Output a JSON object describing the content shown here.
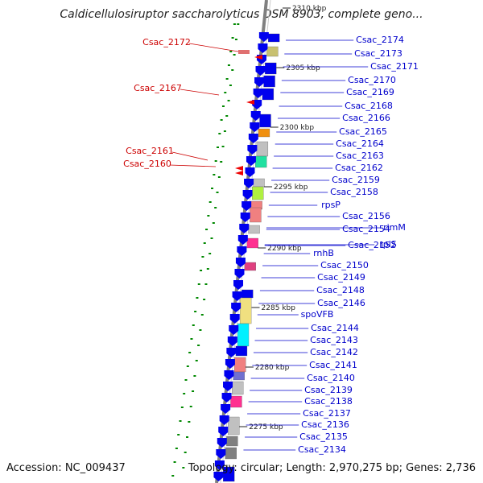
{
  "title": "Caldicellulosiruptor saccharolyticus DSM 8903, complete geno...",
  "footer": {
    "accession": "Accession: NC_009437",
    "summary": "Topology: circular; Length: 2,970,275 bp; Genes: 2,736"
  },
  "scale_ticks": [
    {
      "label": "2310 kbp",
      "pos": 2310
    },
    {
      "label": "2305 kbp",
      "pos": 2305
    },
    {
      "label": "2300 kbp",
      "pos": 2300
    },
    {
      "label": "2295 kbp",
      "pos": 2295
    },
    {
      "label": "2290 kbp",
      "pos": 2290
    },
    {
      "label": "2285 kbp",
      "pos": 2285
    },
    {
      "label": "2280 kbp",
      "pos": 2280
    },
    {
      "label": "2275 kbp",
      "pos": 2275
    }
  ],
  "right_labels": [
    "Csac_2174",
    "Csac_2173",
    "Csac_2171",
    "Csac_2170",
    "Csac_2169",
    "Csac_2168",
    "Csac_2166",
    "Csac_2165",
    "Csac_2164",
    "Csac_2163",
    "Csac_2162",
    "Csac_2159",
    "Csac_2158",
    "rpsP",
    "Csac_2156",
    "rimM",
    "Csac_2154",
    "rplS",
    "Csac_2152",
    "rnhB",
    "Csac_2150",
    "Csac_2149",
    "Csac_2148",
    "Csac_2146",
    "spoVFB",
    "Csac_2144",
    "Csac_2143",
    "Csac_2142",
    "Csac_2141",
    "Csac_2140",
    "Csac_2139",
    "Csac_2138",
    "Csac_2137",
    "Csac_2136",
    "Csac_2135",
    "Csac_2134"
  ],
  "left_labels": [
    "Csac_2172",
    "Csac_2167",
    "Csac_2161",
    "Csac_2160"
  ],
  "colors": {
    "forward_gene": "#0000ee",
    "reverse_gene": "#ee0000",
    "right_label": "#0000cc",
    "left_label": "#cc0000",
    "backbone": "#808080",
    "tick": "#008800"
  }
}
